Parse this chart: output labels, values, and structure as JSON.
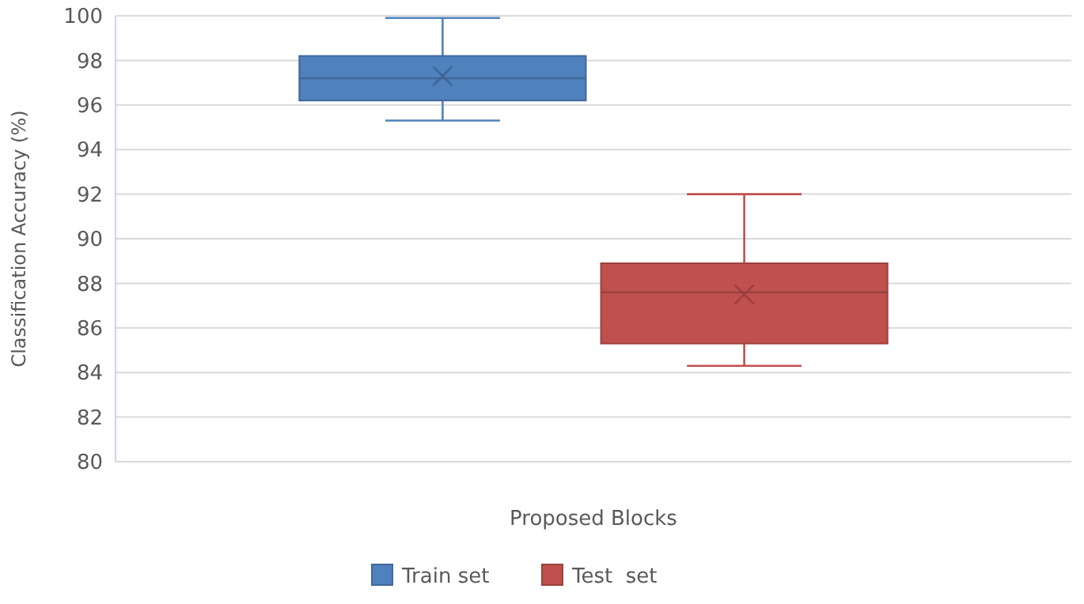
{
  "chart_data": {
    "type": "box",
    "xlabel": "Proposed Blocks",
    "ylabel": "Classification Accuracy (%)",
    "categories": [
      null
    ],
    "series": [
      {
        "name": "Train set",
        "color": "#4f81bd",
        "boxes": [
          {
            "low": 95.3,
            "q1": 96.2,
            "median": 97.2,
            "q3": 98.2,
            "high": 99.9,
            "mean": 97.3
          }
        ]
      },
      {
        "name": "Test  set",
        "color": "#c0504d",
        "boxes": [
          {
            "low": 84.3,
            "q1": 85.3,
            "median": 87.6,
            "q3": 88.9,
            "high": 92,
            "mean": 87.5
          }
        ]
      }
    ],
    "ylim": [
      80,
      100
    ],
    "yticks": [
      80,
      82,
      84,
      86,
      88,
      90,
      92,
      94,
      96,
      98,
      100
    ],
    "grid": "y",
    "legend": "bottom",
    "marker": "cross"
  }
}
